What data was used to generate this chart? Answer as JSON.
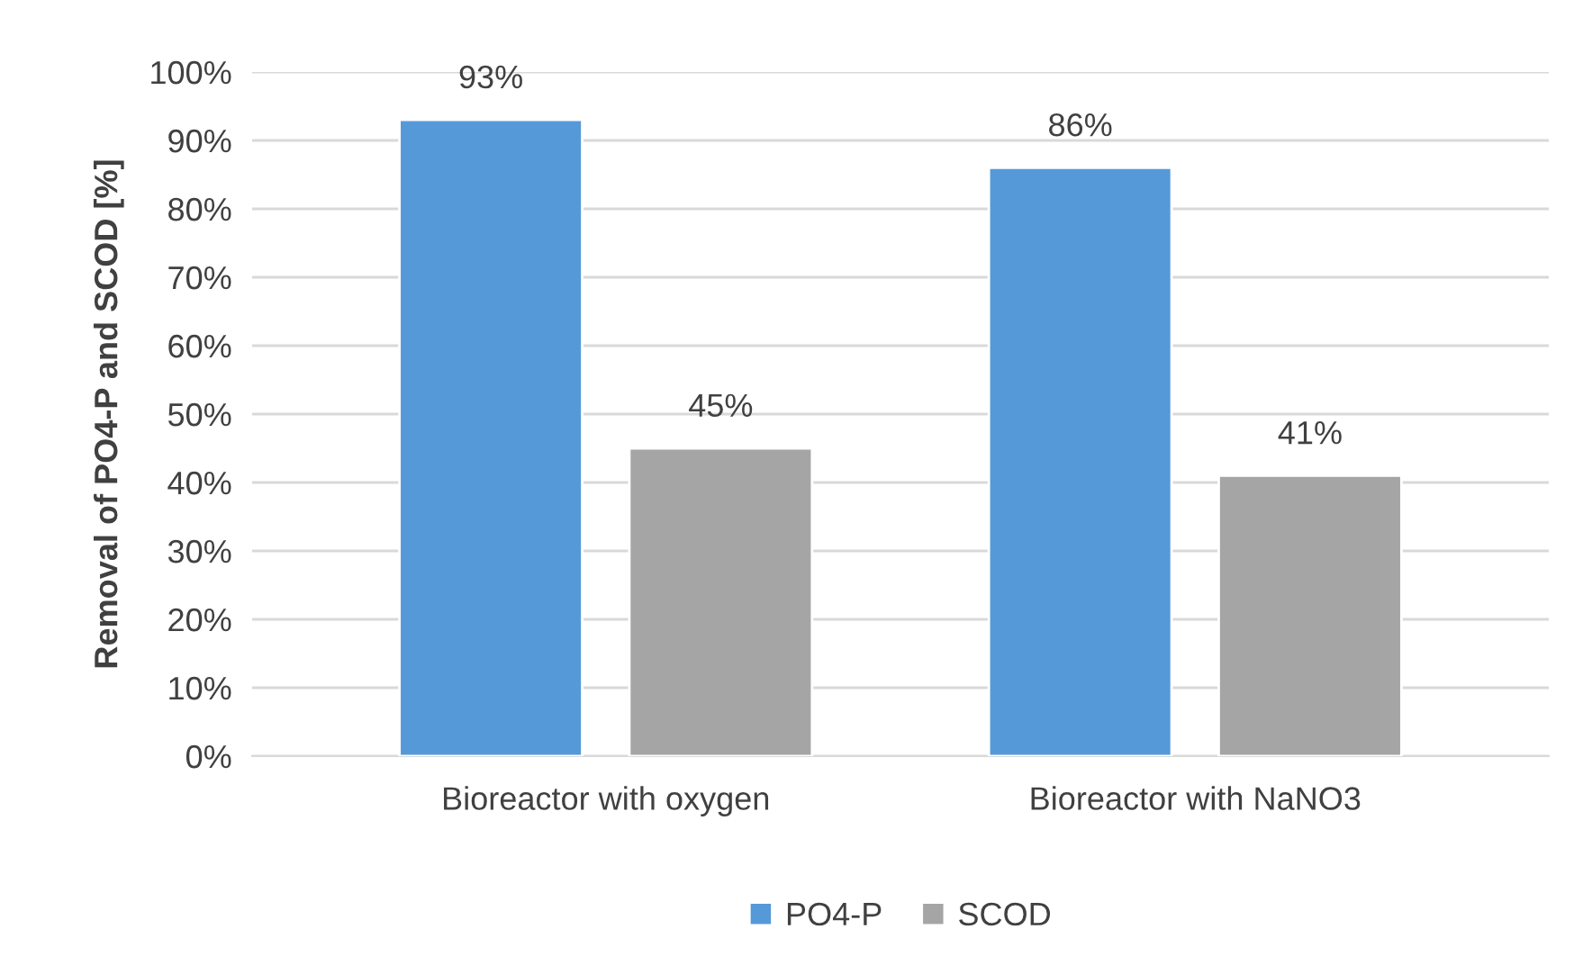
{
  "chart_data": {
    "type": "bar",
    "ylabel": "Removal of PO4-P and SCOD [%]",
    "categories": [
      "Bioreactor with oxygen",
      "Bioreactor with NaNO3"
    ],
    "series": [
      {
        "name": "PO4-P",
        "color": "#5599d9",
        "values": [
          93,
          86
        ],
        "value_labels": [
          "93%",
          "86%"
        ]
      },
      {
        "name": "SCOD",
        "color": "#a5a5a5",
        "values": [
          45,
          41
        ],
        "value_labels": [
          "45%",
          "41%"
        ]
      }
    ],
    "ylim": [
      0,
      100
    ],
    "yticks": [
      {
        "value": 0,
        "label": "0%"
      },
      {
        "value": 10,
        "label": "10%"
      },
      {
        "value": 20,
        "label": "20%"
      },
      {
        "value": 30,
        "label": "30%"
      },
      {
        "value": 40,
        "label": "40%"
      },
      {
        "value": 50,
        "label": "50%"
      },
      {
        "value": 60,
        "label": "60%"
      },
      {
        "value": 70,
        "label": "70%"
      },
      {
        "value": 80,
        "label": "80%"
      },
      {
        "value": 90,
        "label": "90%"
      },
      {
        "value": 100,
        "label": "100%"
      }
    ],
    "grid": "y",
    "legend": "bottom"
  }
}
